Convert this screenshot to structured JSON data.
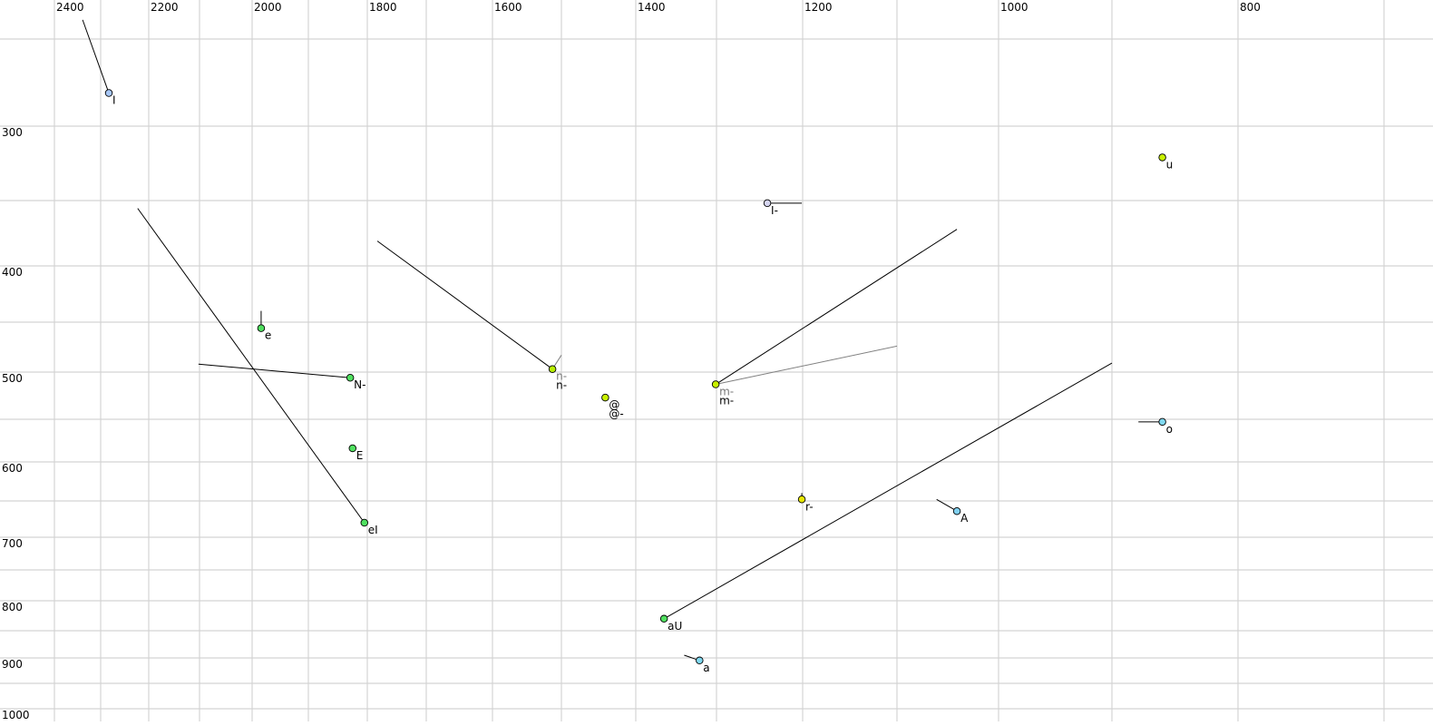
{
  "chart_data": {
    "type": "scatter",
    "title": "",
    "xlabel": "",
    "ylabel": "",
    "x_reversed": true,
    "y_reversed": true,
    "xlim": [
      2400,
      700
    ],
    "ylim": [
      250,
      1000
    ],
    "grid": true,
    "x_grid_step": 100,
    "y_grid_step": 50,
    "x_tick_labels": [
      "2400",
      "2200",
      "2000",
      "1800",
      "1600",
      "1400",
      "1200",
      "1000",
      "800"
    ],
    "y_tick_labels": [
      "300",
      "400",
      "500",
      "600",
      "700",
      "800",
      "900",
      "1000"
    ],
    "points": [
      {
        "label": "I",
        "x": 2283,
        "y": 281,
        "color": "#a8c8f8",
        "trails": [
          {
            "x": 2339,
            "y": 239,
            "color": "#000000"
          }
        ]
      },
      {
        "label": "I-",
        "x": 1241,
        "y": 352,
        "color": "#d4d4f0",
        "trails": [
          {
            "x": 1201,
            "y": 352,
            "color": "#000000"
          }
        ]
      },
      {
        "label": "u",
        "x": 860,
        "y": 321,
        "color": "#c8f000",
        "trails": []
      },
      {
        "label": "e",
        "x": 1984,
        "y": 456,
        "color": "#50e060",
        "trails": [
          {
            "x": 1984,
            "y": 440,
            "color": "#000000"
          }
        ]
      },
      {
        "label": "N-",
        "x": 1829,
        "y": 506,
        "color": "#50e060",
        "trails": [
          {
            "x": 2102,
            "y": 492,
            "color": "#000000"
          }
        ]
      },
      {
        "label": "E",
        "x": 1825,
        "y": 584,
        "color": "#50e060",
        "trails": []
      },
      {
        "label": "eI",
        "x": 1805,
        "y": 680,
        "color": "#50e060",
        "trails": [
          {
            "x": 2223,
            "y": 356,
            "color": "#000000"
          }
        ]
      },
      {
        "label": "n-",
        "label2": "n-",
        "x": 1513,
        "y": 497,
        "color": "#b8f000",
        "trails": [
          {
            "x": 1783,
            "y": 381,
            "color": "#000000"
          },
          {
            "x": 1500,
            "y": 483,
            "color": "#808080"
          }
        ]
      },
      {
        "label": "@-",
        "label2": "@",
        "x": 1441,
        "y": 527,
        "color": "#c8f000",
        "trails": []
      },
      {
        "label": "m-",
        "label2": "m-",
        "x": 1301,
        "y": 513,
        "color": "#c8f000",
        "trails": [
          {
            "x": 1041,
            "y": 372,
            "color": "#000000"
          },
          {
            "x": 1100,
            "y": 474,
            "color": "#808080"
          }
        ]
      },
      {
        "label": "o",
        "x": 860,
        "y": 553,
        "color": "#80d8f0",
        "trails": [
          {
            "x": 879,
            "y": 553,
            "color": "#000000"
          }
        ]
      },
      {
        "label": "r-",
        "x": 1201,
        "y": 648,
        "color": "#e8e800",
        "trails": [
          {
            "x": 1201,
            "y": 640,
            "color": "#000000"
          }
        ]
      },
      {
        "label": "A",
        "x": 1041,
        "y": 664,
        "color": "#80d0f0",
        "trails": [
          {
            "x": 1061,
            "y": 648,
            "color": "#000000"
          }
        ]
      },
      {
        "label": "aU",
        "x": 1365,
        "y": 830,
        "color": "#50e060",
        "trails": [
          {
            "x": 900,
            "y": 491,
            "color": "#000000"
          }
        ]
      },
      {
        "label": "a",
        "x": 1321,
        "y": 905,
        "color": "#80d8f0",
        "trails": [
          {
            "x": 1340,
            "y": 895,
            "color": "#000000"
          }
        ]
      }
    ]
  }
}
